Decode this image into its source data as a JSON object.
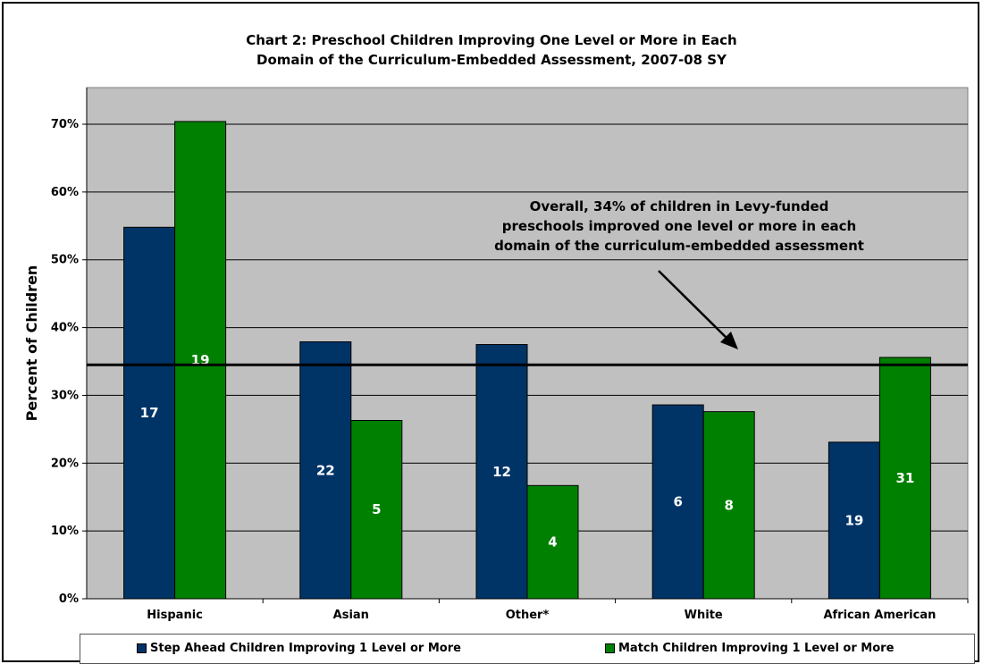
{
  "chart_data": {
    "type": "bar",
    "title_line1": "Chart 2: Preschool Children Improving One Level or More in Each",
    "title_line2": "Domain of the Curriculum-Embedded Assessment, 2007-08 SY",
    "ylabel": "Percent of Children",
    "xlabel": "",
    "ylim": [
      0,
      70
    ],
    "yticks": [
      0,
      10,
      20,
      30,
      40,
      50,
      60,
      70
    ],
    "ytick_labels": [
      "0%",
      "10%",
      "20%",
      "30%",
      "40%",
      "50%",
      "60%",
      "70%"
    ],
    "grid": true,
    "categories": [
      "Hispanic",
      "Asian",
      "Other*",
      "White",
      "African American"
    ],
    "series": [
      {
        "name": "Step Ahead Children Improving 1 Level or More",
        "color": "#003366",
        "values": [
          54.8,
          37.9,
          37.5,
          28.6,
          23.1
        ],
        "labels": [
          "17",
          "22",
          "12",
          "6",
          "19"
        ]
      },
      {
        "name": "Match Children Improving 1 Level or More",
        "color": "#008000",
        "values": [
          70.4,
          26.3,
          16.7,
          27.6,
          35.6
        ],
        "labels": [
          "19",
          "5",
          "4",
          "8",
          "31"
        ]
      }
    ],
    "reference_line": {
      "value": 34.5
    },
    "annotation": {
      "lines": [
        "Overall, 34% of children in Levy-funded",
        "preschools improved one level or more in each",
        "domain of the curriculum-embedded assessment"
      ]
    },
    "legend_position": "bottom"
  }
}
